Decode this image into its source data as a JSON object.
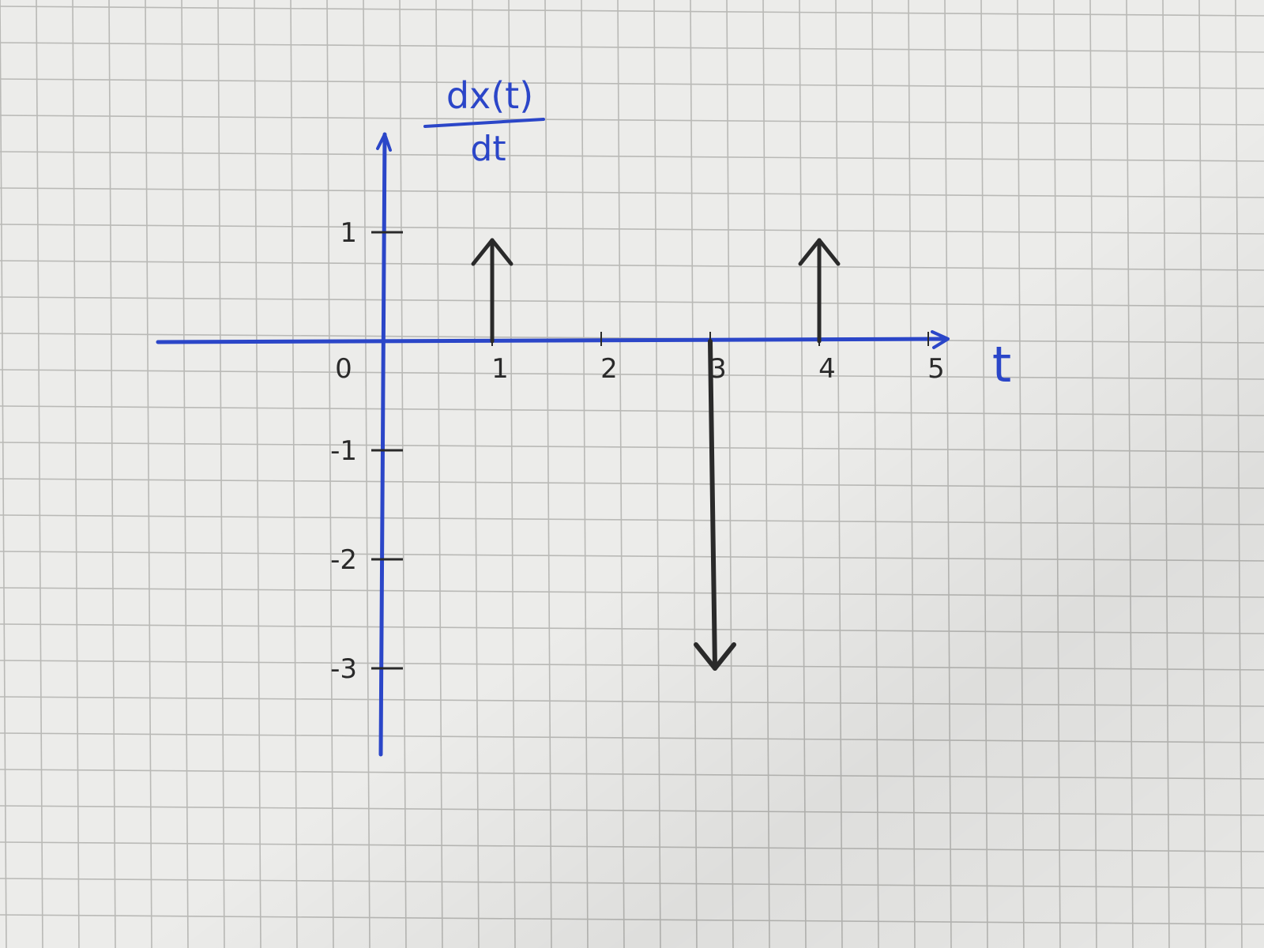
{
  "chart_data": {
    "type": "impulse",
    "title": "",
    "ylabel": {
      "numerator": "dx(t)",
      "denominator": "dt"
    },
    "xlabel": "t",
    "xlim": [
      -2,
      5.5
    ],
    "ylim": [
      -3.8,
      1.9
    ],
    "x_ticks": [
      {
        "value": 0,
        "label": "0"
      },
      {
        "value": 1,
        "label": "1"
      },
      {
        "value": 2,
        "label": "2"
      },
      {
        "value": 3,
        "label": "3"
      },
      {
        "value": 4,
        "label": "4"
      },
      {
        "value": 5,
        "label": "5"
      }
    ],
    "y_ticks": [
      {
        "value": 1,
        "label": "1"
      },
      {
        "value": -1,
        "label": "-1"
      },
      {
        "value": -2,
        "label": "-2"
      },
      {
        "value": -3,
        "label": "-3"
      }
    ],
    "impulses": [
      {
        "t": 1,
        "area": 1
      },
      {
        "t": 3,
        "area": -3
      },
      {
        "t": 4,
        "area": 1
      }
    ],
    "grid": true,
    "colors": {
      "axes": "#2b46c8",
      "impulses": "#2a2a2a",
      "grid": "#b9b9b6",
      "paper": "#ececea"
    }
  }
}
